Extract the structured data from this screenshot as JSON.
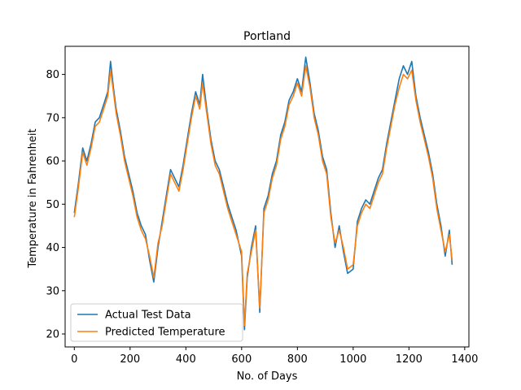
{
  "chart_data": {
    "type": "line",
    "title": "Portland",
    "xlabel": "No. of Days",
    "ylabel": "Temperature in Fahrenheit",
    "xlim": [
      -33,
      1415
    ],
    "ylim": [
      17,
      86.5
    ],
    "xticks": [
      0,
      200,
      400,
      600,
      800,
      1000,
      1200,
      1400
    ],
    "yticks": [
      20,
      30,
      40,
      50,
      60,
      70,
      80
    ],
    "grid": false,
    "legend": {
      "placement": "lower-left"
    },
    "series": [
      {
        "name": "Actual Test Data",
        "color": "#1f77b4",
        "x": [
          0,
          15,
          30,
          45,
          60,
          75,
          90,
          105,
          120,
          130,
          140,
          150,
          165,
          180,
          195,
          210,
          225,
          240,
          255,
          270,
          285,
          300,
          315,
          330,
          345,
          360,
          375,
          390,
          405,
          420,
          435,
          450,
          460,
          475,
          490,
          505,
          520,
          535,
          550,
          565,
          580,
          600,
          610,
          620,
          635,
          650,
          665,
          680,
          695,
          710,
          725,
          740,
          755,
          770,
          785,
          800,
          815,
          830,
          845,
          860,
          875,
          890,
          905,
          920,
          935,
          950,
          965,
          980,
          1000,
          1015,
          1030,
          1045,
          1060,
          1075,
          1090,
          1105,
          1120,
          1135,
          1150,
          1165,
          1180,
          1195,
          1210,
          1225,
          1240,
          1255,
          1270,
          1285,
          1300,
          1315,
          1330,
          1345,
          1355
        ],
        "values": [
          48,
          55,
          63,
          60,
          64,
          69,
          70,
          73,
          76,
          83,
          77,
          72,
          67,
          61,
          57,
          53,
          48,
          45,
          43,
          37,
          32,
          40,
          46,
          52,
          58,
          56,
          54,
          59,
          65,
          71,
          76,
          73,
          80,
          72,
          65,
          60,
          58,
          54,
          50,
          47,
          44,
          38,
          21,
          33,
          40,
          45,
          25,
          49,
          52,
          57,
          60,
          66,
          69,
          74,
          76,
          79,
          76,
          84,
          78,
          71,
          67,
          61,
          58,
          48,
          40,
          45,
          39,
          34,
          35,
          46,
          49,
          51,
          50,
          53,
          56,
          58,
          64,
          69,
          74,
          79,
          82,
          80,
          83,
          75,
          70,
          66,
          62,
          57,
          50,
          45,
          38,
          44,
          36
        ]
      },
      {
        "name": "Predicted Temperature",
        "color": "#ff7f0e",
        "x": [
          0,
          15,
          30,
          45,
          60,
          75,
          90,
          105,
          120,
          130,
          140,
          150,
          165,
          180,
          195,
          210,
          225,
          240,
          255,
          270,
          285,
          300,
          315,
          330,
          345,
          360,
          375,
          390,
          405,
          420,
          435,
          450,
          460,
          475,
          490,
          505,
          520,
          535,
          550,
          565,
          580,
          600,
          610,
          620,
          635,
          650,
          665,
          680,
          695,
          710,
          725,
          740,
          755,
          770,
          785,
          800,
          815,
          830,
          845,
          860,
          875,
          890,
          905,
          920,
          935,
          950,
          965,
          980,
          1000,
          1015,
          1030,
          1045,
          1060,
          1075,
          1090,
          1105,
          1120,
          1135,
          1150,
          1165,
          1180,
          1195,
          1210,
          1225,
          1240,
          1255,
          1270,
          1285,
          1300,
          1315,
          1330,
          1345,
          1355
        ],
        "values": [
          47,
          54,
          62,
          59,
          63,
          68,
          69,
          72,
          75,
          81,
          76,
          71,
          66,
          60,
          56,
          52,
          47,
          44,
          42,
          38,
          33,
          41,
          45,
          51,
          57,
          55,
          53,
          58,
          64,
          70,
          75,
          72,
          78,
          71,
          64,
          59,
          57,
          53,
          49,
          46,
          43,
          39,
          22,
          34,
          39,
          44,
          26,
          48,
          51,
          56,
          59,
          65,
          68,
          73,
          75,
          78,
          75,
          82,
          77,
          70,
          66,
          60,
          57,
          47,
          41,
          44,
          40,
          35,
          36,
          45,
          48,
          50,
          49,
          52,
          55,
          57,
          63,
          68,
          73,
          77,
          80,
          79,
          81,
          74,
          69,
          65,
          61,
          56,
          49,
          44,
          39,
          43,
          37
        ]
      }
    ]
  }
}
